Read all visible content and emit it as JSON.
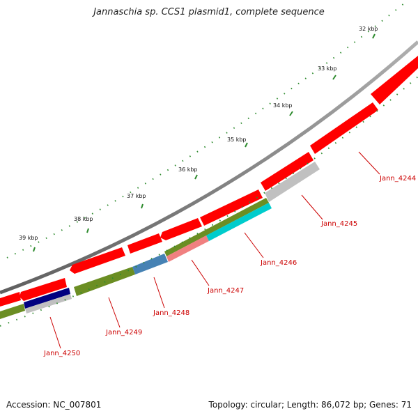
{
  "title": "Jannaschia sp. CCS1 plasmid1, complete sequence",
  "footer": {
    "accession": "Accession: NC_007801",
    "topology": "Topology: circular; Length: 86,072 bp; Genes: 71"
  },
  "ticks": [
    "32 kbp",
    "33 kbp",
    "34 kbp",
    "35 kbp",
    "36 kbp",
    "37 kbp",
    "38 kbp",
    "39 kbp"
  ],
  "gene_labels": [
    "Jann_4244",
    "Jann_4245",
    "Jann_4246",
    "Jann_4247",
    "Jann_4248",
    "Jann_4249",
    "Jann_4250"
  ],
  "colors": {
    "cds_red": "#ff0000",
    "backbone": "#808080",
    "olive": "#6b8e23",
    "steelblue": "#4682b4",
    "cyan": "#00cccc",
    "salmon": "#f08080",
    "navy": "#000080",
    "grey": "#c0c0c0",
    "tick_green": "#2e8b2e",
    "label_red": "#cc0000"
  }
}
